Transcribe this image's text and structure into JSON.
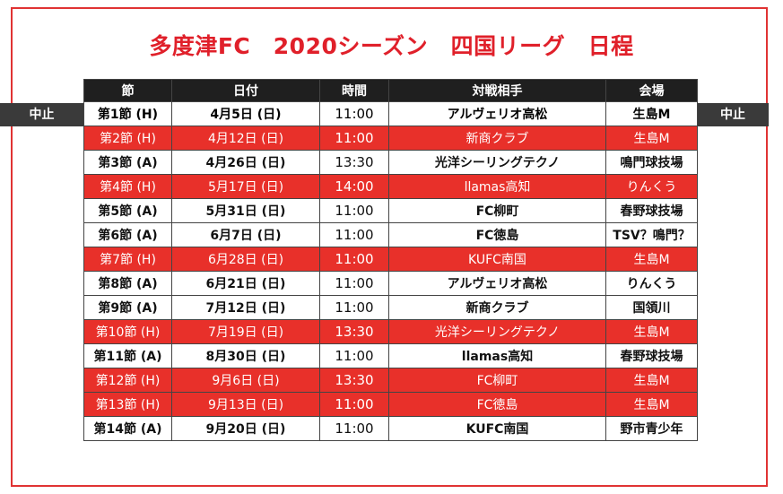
{
  "title": "多度津FC　2020シーズン　四国リーグ　日程",
  "cancel_label": "中止",
  "colors": {
    "home": "#e8302a",
    "header": "#1f1f1f",
    "cancelled": "#3a3a3a",
    "title": "#e0202a"
  },
  "headers": {
    "round": "節",
    "date": "日付",
    "time": "時間",
    "opponent": "対戦相手",
    "venue": "会場"
  },
  "rows": [
    {
      "round": "第1節 (H)",
      "date": "4月5日 (日)",
      "time": "11:00",
      "opponent": "アルヴェリオ高松",
      "venue": "生島M",
      "status": "cancelled"
    },
    {
      "round": "第2節 (H)",
      "date": "4月12日 (日)",
      "time": "11:00",
      "opponent": "新商クラブ",
      "venue": "生島M",
      "status": "home"
    },
    {
      "round": "第3節 (A)",
      "date": "4月26日 (日)",
      "time": "13:30",
      "opponent": "光洋シーリングテクノ",
      "venue": "鳴門球技場",
      "status": "away"
    },
    {
      "round": "第4節 (H)",
      "date": "5月17日 (日)",
      "time": "14:00",
      "opponent": "llamas高知",
      "venue": "りんくう",
      "status": "home"
    },
    {
      "round": "第5節 (A)",
      "date": "5月31日 (日)",
      "time": "11:00",
      "opponent": "FC柳町",
      "venue": "春野球技場",
      "status": "away"
    },
    {
      "round": "第6節 (A)",
      "date": "6月7日 (日)",
      "time": "11:00",
      "opponent": "FC徳島",
      "venue": "TSV？鳴門？",
      "status": "away"
    },
    {
      "round": "第7節 (H)",
      "date": "6月28日 (日)",
      "time": "11:00",
      "opponent": "KUFC南国",
      "venue": "生島M",
      "status": "home"
    },
    {
      "round": "第8節 (A)",
      "date": "6月21日 (日)",
      "time": "11:00",
      "opponent": "アルヴェリオ高松",
      "venue": "りんくう",
      "status": "away"
    },
    {
      "round": "第9節 (A)",
      "date": "7月12日 (日)",
      "time": "11:00",
      "opponent": "新商クラブ",
      "venue": "国領川",
      "status": "away"
    },
    {
      "round": "第10節 (H)",
      "date": "7月19日 (日)",
      "time": "13:30",
      "opponent": "光洋シーリングテクノ",
      "venue": "生島M",
      "status": "home"
    },
    {
      "round": "第11節 (A)",
      "date": "8月30日 (日)",
      "time": "11:00",
      "opponent": "llamas高知",
      "venue": "春野球技場",
      "status": "away"
    },
    {
      "round": "第12節 (H)",
      "date": "9月6日 (日)",
      "time": "13:30",
      "opponent": "FC柳町",
      "venue": "生島M",
      "status": "home"
    },
    {
      "round": "第13節 (H)",
      "date": "9月13日 (日)",
      "time": "11:00",
      "opponent": "FC徳島",
      "venue": "生島M",
      "status": "home"
    },
    {
      "round": "第14節 (A)",
      "date": "9月20日 (日)",
      "time": "11:00",
      "opponent": "KUFC南国",
      "venue": "野市青少年",
      "status": "away"
    }
  ]
}
